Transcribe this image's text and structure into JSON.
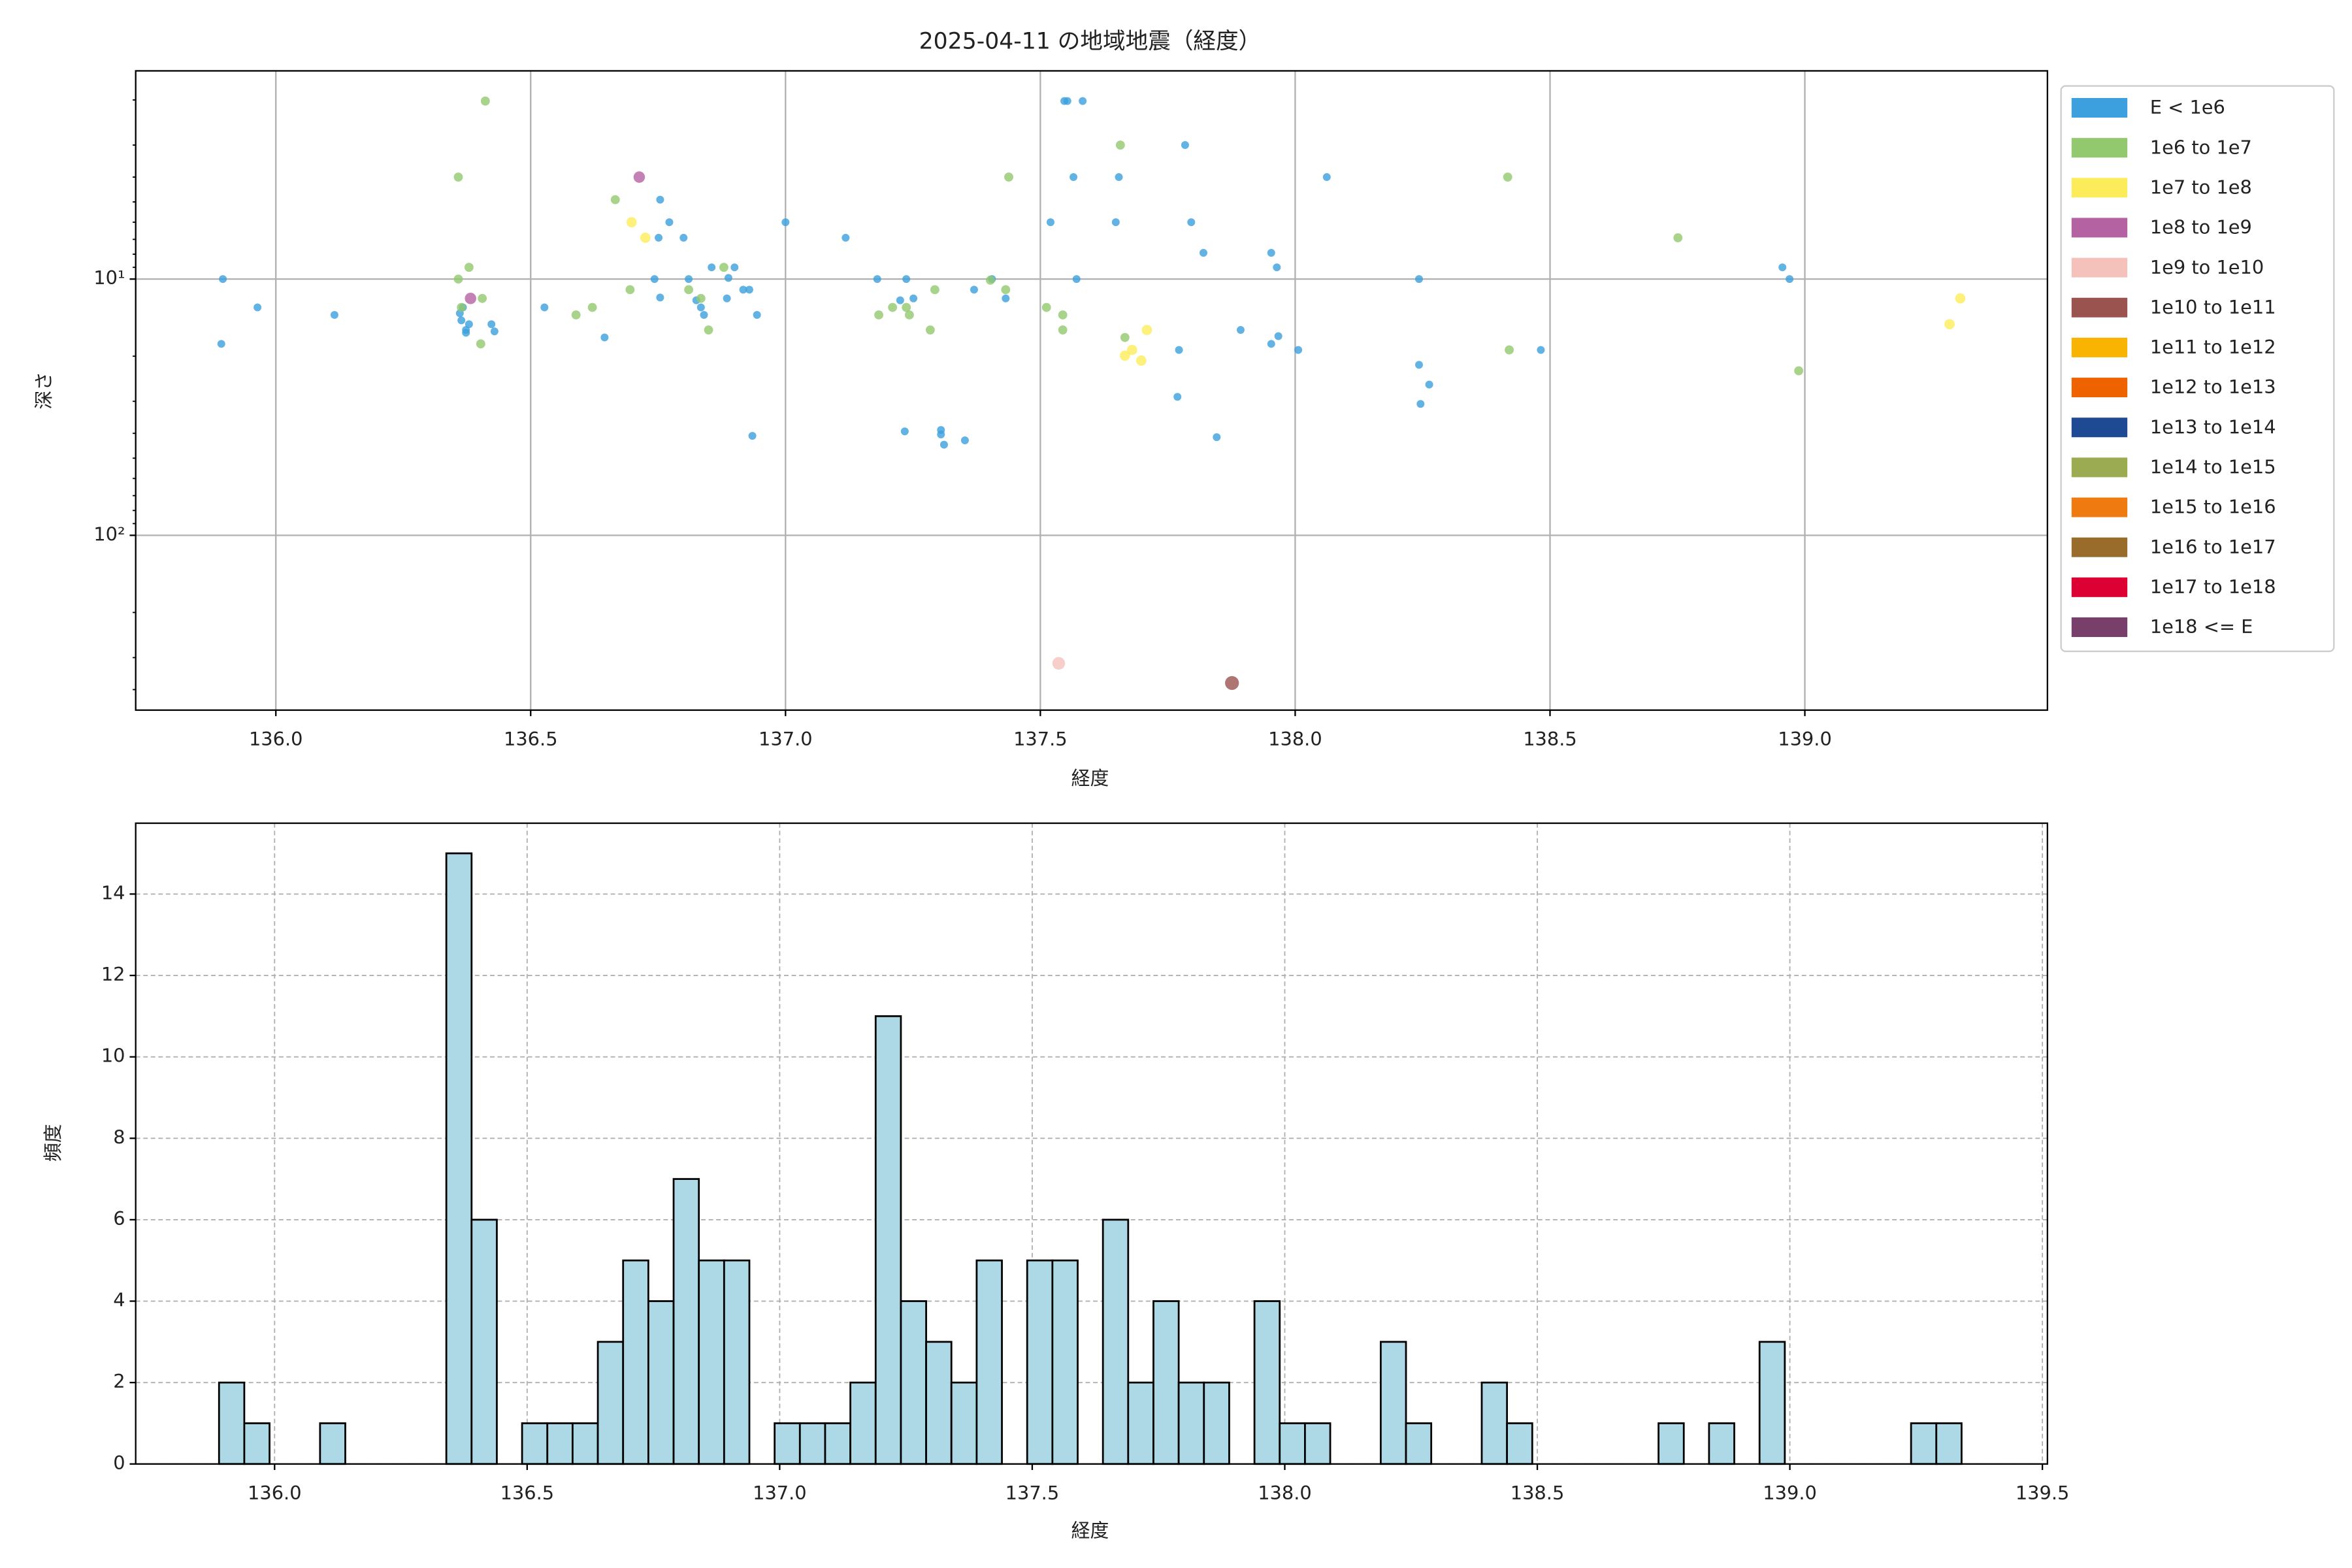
{
  "chart_data": [
    {
      "type": "scatter",
      "title": "2025-04-11 の地域地震（経度）",
      "xlabel": "経度",
      "ylabel": "深さ",
      "xlim": [
        135.725,
        139.476
      ],
      "xticks": [
        {
          "value": 136,
          "label": "136.0"
        },
        {
          "value": 136.5,
          "label": "136.5"
        },
        {
          "value": 137,
          "label": "137.0"
        },
        {
          "value": 137.5,
          "label": "137.5"
        },
        {
          "value": 138,
          "label": "138.0"
        },
        {
          "value": 138.5,
          "label": "138.5"
        },
        {
          "value": 139,
          "label": "139.0"
        }
      ],
      "ylim": [
        1.54,
        481
      ],
      "y_inverted": true,
      "log_y": true,
      "yticks": [
        {
          "value": 10,
          "label": "10¹"
        },
        {
          "value": 100,
          "label": "10²"
        }
      ],
      "grid": true,
      "legend": "outside right",
      "series": [
        {
          "name": "E < 1e6",
          "color": "#3ba0dd",
          "x": [
            135.896,
            135.893,
            135.964,
            136.115,
            136.361,
            136.367,
            136.364,
            136.373,
            136.379,
            136.373,
            136.423,
            136.429,
            136.527,
            136.645,
            136.743,
            136.754,
            136.751,
            136.754,
            136.772,
            136.8,
            136.81,
            136.825,
            136.834,
            136.84,
            136.855,
            136.885,
            136.888,
            136.9,
            136.917,
            136.929,
            136.944,
            136.935,
            137.0,
            137.118,
            137.18,
            137.225,
            137.237,
            137.251,
            137.234,
            137.305,
            137.305,
            137.311,
            137.352,
            137.37,
            137.405,
            137.432,
            137.52,
            137.547,
            137.553,
            137.583,
            137.565,
            137.571,
            137.648,
            137.654,
            137.784,
            137.796,
            137.82,
            137.772,
            137.769,
            137.846,
            137.893,
            137.953,
            137.964,
            137.953,
            137.967,
            138.006,
            138.062,
            138.243,
            138.243,
            138.263,
            138.246,
            138.482,
            138.956,
            138.97
          ],
          "values": [
            10,
            17.9,
            12.9,
            13.8,
            13.6,
            12.9,
            14.5,
            15.8,
            15.0,
            16.2,
            15.0,
            16.0,
            12.9,
            16.9,
            10,
            11.8,
            6.9,
            4.9,
            6.0,
            6.9,
            10,
            12.1,
            12.9,
            13.8,
            9.0,
            11.9,
            9.9,
            9.0,
            11.0,
            11.0,
            13.8,
            40.9,
            6.0,
            6.9,
            10,
            12.1,
            10,
            11.9,
            39.3,
            38.8,
            40.4,
            44.3,
            42.6,
            11.0,
            10,
            11.9,
            6.0,
            2.02,
            2.02,
            2.02,
            4.0,
            10,
            6.0,
            4.0,
            3.0,
            6.0,
            7.9,
            18.9,
            28.8,
            41.4,
            15.8,
            7.9,
            9.0,
            17.9,
            16.7,
            18.9,
            4.0,
            10,
            21.6,
            25.8,
            30.7,
            18.9,
            9.0,
            10
          ]
        },
        {
          "name": "1e6 to 1e7",
          "color": "#92c86e",
          "x": [
            136.411,
            136.358,
            136.379,
            136.358,
            136.364,
            136.405,
            136.402,
            136.589,
            136.621,
            136.666,
            136.695,
            136.81,
            136.834,
            136.849,
            136.879,
            137.183,
            137.21,
            137.237,
            137.243,
            137.284,
            137.293,
            137.402,
            137.432,
            137.438,
            137.512,
            137.544,
            137.544,
            137.657,
            137.666,
            138.417,
            138.42,
            138.751,
            138.988
          ],
          "values": [
            2.02,
            4.0,
            9.0,
            10,
            12.9,
            11.9,
            17.9,
            13.8,
            12.9,
            4.9,
            11.0,
            11.0,
            11.9,
            15.8,
            9.0,
            13.8,
            12.9,
            12.9,
            13.8,
            15.8,
            11.0,
            10.1,
            11.0,
            4.0,
            12.9,
            13.8,
            15.8,
            3.0,
            16.9,
            4.0,
            18.9,
            6.9,
            22.8
          ]
        },
        {
          "name": "1e7 to 1e8",
          "color": "#fdec5a",
          "x": [
            136.698,
            136.725,
            137.666,
            137.68,
            137.698,
            137.709,
            139.284,
            139.305
          ],
          "values": [
            6.0,
            6.9,
            19.9,
            18.9,
            20.8,
            15.8,
            15.0,
            11.9
          ]
        },
        {
          "name": "1e8 to 1e9",
          "color": "#b562a3",
          "x": [
            136.713,
            136.382
          ],
          "values": [
            4.0,
            11.9
          ]
        },
        {
          "name": "1e9 to 1e10",
          "color": "#f5c2bb",
          "x": [
            137.536
          ],
          "values": [
            316
          ]
        },
        {
          "name": "1e10 to 1e11",
          "color": "#9b5350",
          "x": [
            137.876
          ],
          "values": [
            377
          ]
        },
        {
          "name": "1e11 to 1e12",
          "color": "#f8b400",
          "x": [],
          "values": []
        },
        {
          "name": "1e12 to 1e13",
          "color": "#ee6300",
          "x": [],
          "values": []
        },
        {
          "name": "1e13 to 1e14",
          "color": "#1e4a93",
          "x": [],
          "values": []
        },
        {
          "name": "1e14 to 1e15",
          "color": "#9aab51",
          "x": [],
          "values": []
        },
        {
          "name": "1e15 to 1e16",
          "color": "#ee7a10",
          "x": [],
          "values": []
        },
        {
          "name": "1e16 to 1e17",
          "color": "#9a6c2b",
          "x": [],
          "values": []
        },
        {
          "name": "1e17 to 1e18",
          "color": "#dc0033",
          "x": [],
          "values": []
        },
        {
          "name": "1e18 <= E",
          "color": "#773f69",
          "x": [],
          "values": []
        }
      ]
    },
    {
      "type": "histogram",
      "xlabel": "経度",
      "ylabel": "頻度",
      "color": "#add8e6",
      "edgecolor": "#000000",
      "bins": [
        135.89,
        135.94,
        135.99,
        136.04,
        136.09,
        136.14,
        136.19,
        136.24,
        136.29,
        136.34,
        136.39,
        136.44,
        136.49,
        136.54,
        136.59,
        136.64,
        136.69,
        136.74,
        136.79,
        136.84,
        136.89,
        136.94,
        136.99,
        137.04,
        137.09,
        137.14,
        137.19,
        137.24,
        137.29,
        137.34,
        137.39,
        137.44,
        137.49,
        137.54,
        137.59,
        137.64,
        137.69,
        137.74,
        137.79,
        137.84,
        137.89,
        137.94,
        137.99,
        138.04,
        138.09,
        138.14,
        138.19,
        138.24,
        138.29,
        138.34,
        138.39,
        138.44,
        138.49,
        138.54,
        138.59,
        138.64,
        138.69,
        138.74,
        138.79,
        138.84,
        138.89,
        138.94,
        138.99,
        139.04,
        139.09,
        139.14,
        139.19,
        139.24,
        139.29,
        139.34
      ],
      "values": [
        2,
        1,
        0,
        0,
        1,
        0,
        0,
        0,
        0,
        15,
        6,
        0,
        1,
        1,
        1,
        3,
        5,
        4,
        7,
        5,
        5,
        0,
        1,
        1,
        1,
        2,
        11,
        4,
        3,
        2,
        5,
        0,
        5,
        5,
        0,
        6,
        2,
        4,
        2,
        2,
        0,
        4,
        1,
        1,
        0,
        0,
        3,
        1,
        0,
        0,
        2,
        1,
        0,
        0,
        0,
        0,
        0,
        1,
        0,
        1,
        0,
        3,
        0,
        0,
        0,
        0,
        0,
        1,
        1
      ],
      "xlim": [
        135.725,
        139.51
      ],
      "xticks": [
        {
          "value": 136,
          "label": "136.0"
        },
        {
          "value": 136.5,
          "label": "136.5"
        },
        {
          "value": 137,
          "label": "137.0"
        },
        {
          "value": 137.5,
          "label": "137.5"
        },
        {
          "value": 138,
          "label": "138.0"
        },
        {
          "value": 138.5,
          "label": "138.5"
        },
        {
          "value": 139,
          "label": "139.0"
        },
        {
          "value": 139.5,
          "label": "139.5"
        }
      ],
      "ylim": [
        0,
        15.74
      ],
      "yticks": [
        0,
        2,
        4,
        6,
        8,
        10,
        12,
        14
      ],
      "grid": "dashed"
    }
  ]
}
